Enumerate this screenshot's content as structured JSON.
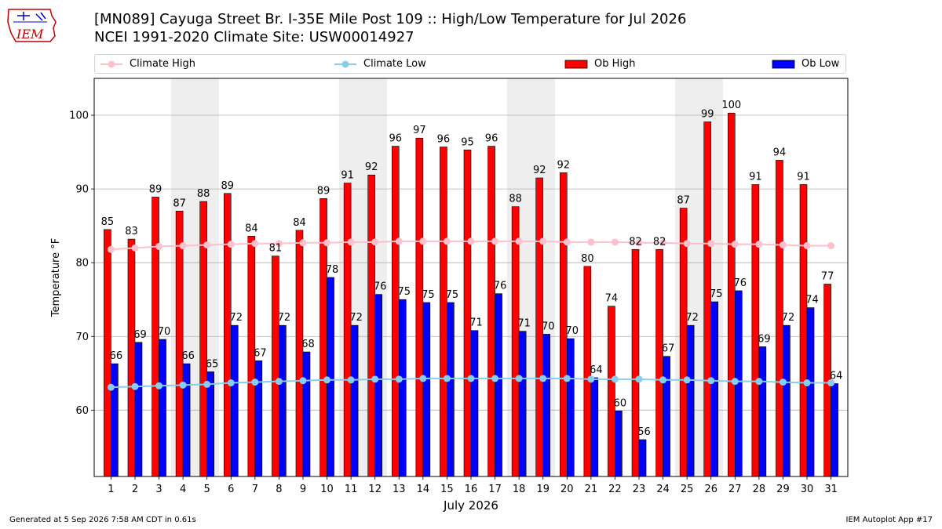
{
  "header": {
    "logo_text": "IEM",
    "title_line1": "[MN089] Cayuga Street Br. I-35E Mile Post 109 :: High/Low Temperature for Jul 2026",
    "title_line2": "NCEI 1991-2020 Climate Site: USW00014927"
  },
  "legend": {
    "climate_high": "Climate High",
    "climate_low": "Climate Low",
    "ob_high": "Ob High",
    "ob_low": "Ob Low"
  },
  "colors": {
    "ob_high": "#ff0000",
    "ob_low": "#0000ff",
    "climate_high": "#ffc0cb",
    "climate_low": "#87ceeb",
    "weekend_shade": "#eeeeee"
  },
  "footer": {
    "generated": "Generated at 5 Sep 2026 7:58 AM CDT in 0.61s",
    "app": "IEM Autoplot App #17"
  },
  "chart_data": {
    "type": "bar",
    "xlabel": "July 2026",
    "ylabel": "Temperature °F",
    "ylim": [
      51,
      105
    ],
    "yticks": [
      60,
      70,
      80,
      90,
      100
    ],
    "grid": "y",
    "legend_position": "top",
    "categories": [
      "1",
      "2",
      "3",
      "4",
      "5",
      "6",
      "7",
      "8",
      "9",
      "10",
      "11",
      "12",
      "13",
      "14",
      "15",
      "16",
      "17",
      "18",
      "19",
      "20",
      "21",
      "22",
      "23",
      "24",
      "25",
      "26",
      "27",
      "28",
      "29",
      "30",
      "31"
    ],
    "weekend_days": [
      "4",
      "5",
      "11",
      "12",
      "18",
      "19",
      "25",
      "26"
    ],
    "series": [
      {
        "name": "Ob High",
        "type": "bar",
        "values": [
          85,
          83,
          89,
          87,
          88,
          89,
          84,
          81,
          84,
          89,
          91,
          92,
          96,
          97,
          96,
          95,
          96,
          88,
          92,
          92,
          80,
          74,
          82,
          82,
          87,
          99,
          100,
          91,
          94,
          91,
          77
        ],
        "values_exact": [
          84.5,
          83.2,
          88.9,
          87.0,
          88.3,
          89.4,
          83.6,
          80.9,
          84.4,
          88.7,
          90.8,
          91.9,
          95.8,
          96.9,
          95.7,
          95.3,
          95.8,
          87.6,
          91.5,
          92.2,
          79.5,
          74.1,
          81.8,
          81.8,
          87.4,
          99.1,
          100.3,
          90.6,
          93.9,
          90.6,
          77.1
        ]
      },
      {
        "name": "Ob Low",
        "type": "bar",
        "values": [
          66,
          69,
          70,
          66,
          65,
          72,
          67,
          72,
          68,
          78,
          72,
          76,
          75,
          75,
          75,
          71,
          76,
          71,
          70,
          70,
          64,
          60,
          56,
          67,
          72,
          75,
          76,
          69,
          72,
          74,
          64
        ],
        "values_exact": [
          66.3,
          69.2,
          69.6,
          66.3,
          65.2,
          71.5,
          66.7,
          71.5,
          67.9,
          78.0,
          71.5,
          75.7,
          75.0,
          74.6,
          74.6,
          70.8,
          75.8,
          70.7,
          70.3,
          69.7,
          64.4,
          59.9,
          56.0,
          67.3,
          71.5,
          74.7,
          76.2,
          68.6,
          71.5,
          73.9,
          63.6
        ]
      },
      {
        "name": "Climate High",
        "type": "line",
        "values": [
          81.8,
          82.0,
          82.2,
          82.3,
          82.4,
          82.5,
          82.6,
          82.6,
          82.7,
          82.7,
          82.8,
          82.8,
          82.9,
          82.9,
          82.9,
          82.9,
          82.9,
          82.9,
          82.9,
          82.8,
          82.8,
          82.8,
          82.7,
          82.7,
          82.6,
          82.6,
          82.5,
          82.5,
          82.4,
          82.3,
          82.3
        ]
      },
      {
        "name": "Climate Low",
        "type": "line",
        "values": [
          63.1,
          63.2,
          63.3,
          63.4,
          63.5,
          63.7,
          63.8,
          63.9,
          64.0,
          64.1,
          64.1,
          64.2,
          64.2,
          64.3,
          64.3,
          64.3,
          64.3,
          64.3,
          64.3,
          64.3,
          64.2,
          64.2,
          64.2,
          64.1,
          64.1,
          64.0,
          63.9,
          63.9,
          63.8,
          63.7,
          63.7
        ]
      }
    ]
  }
}
